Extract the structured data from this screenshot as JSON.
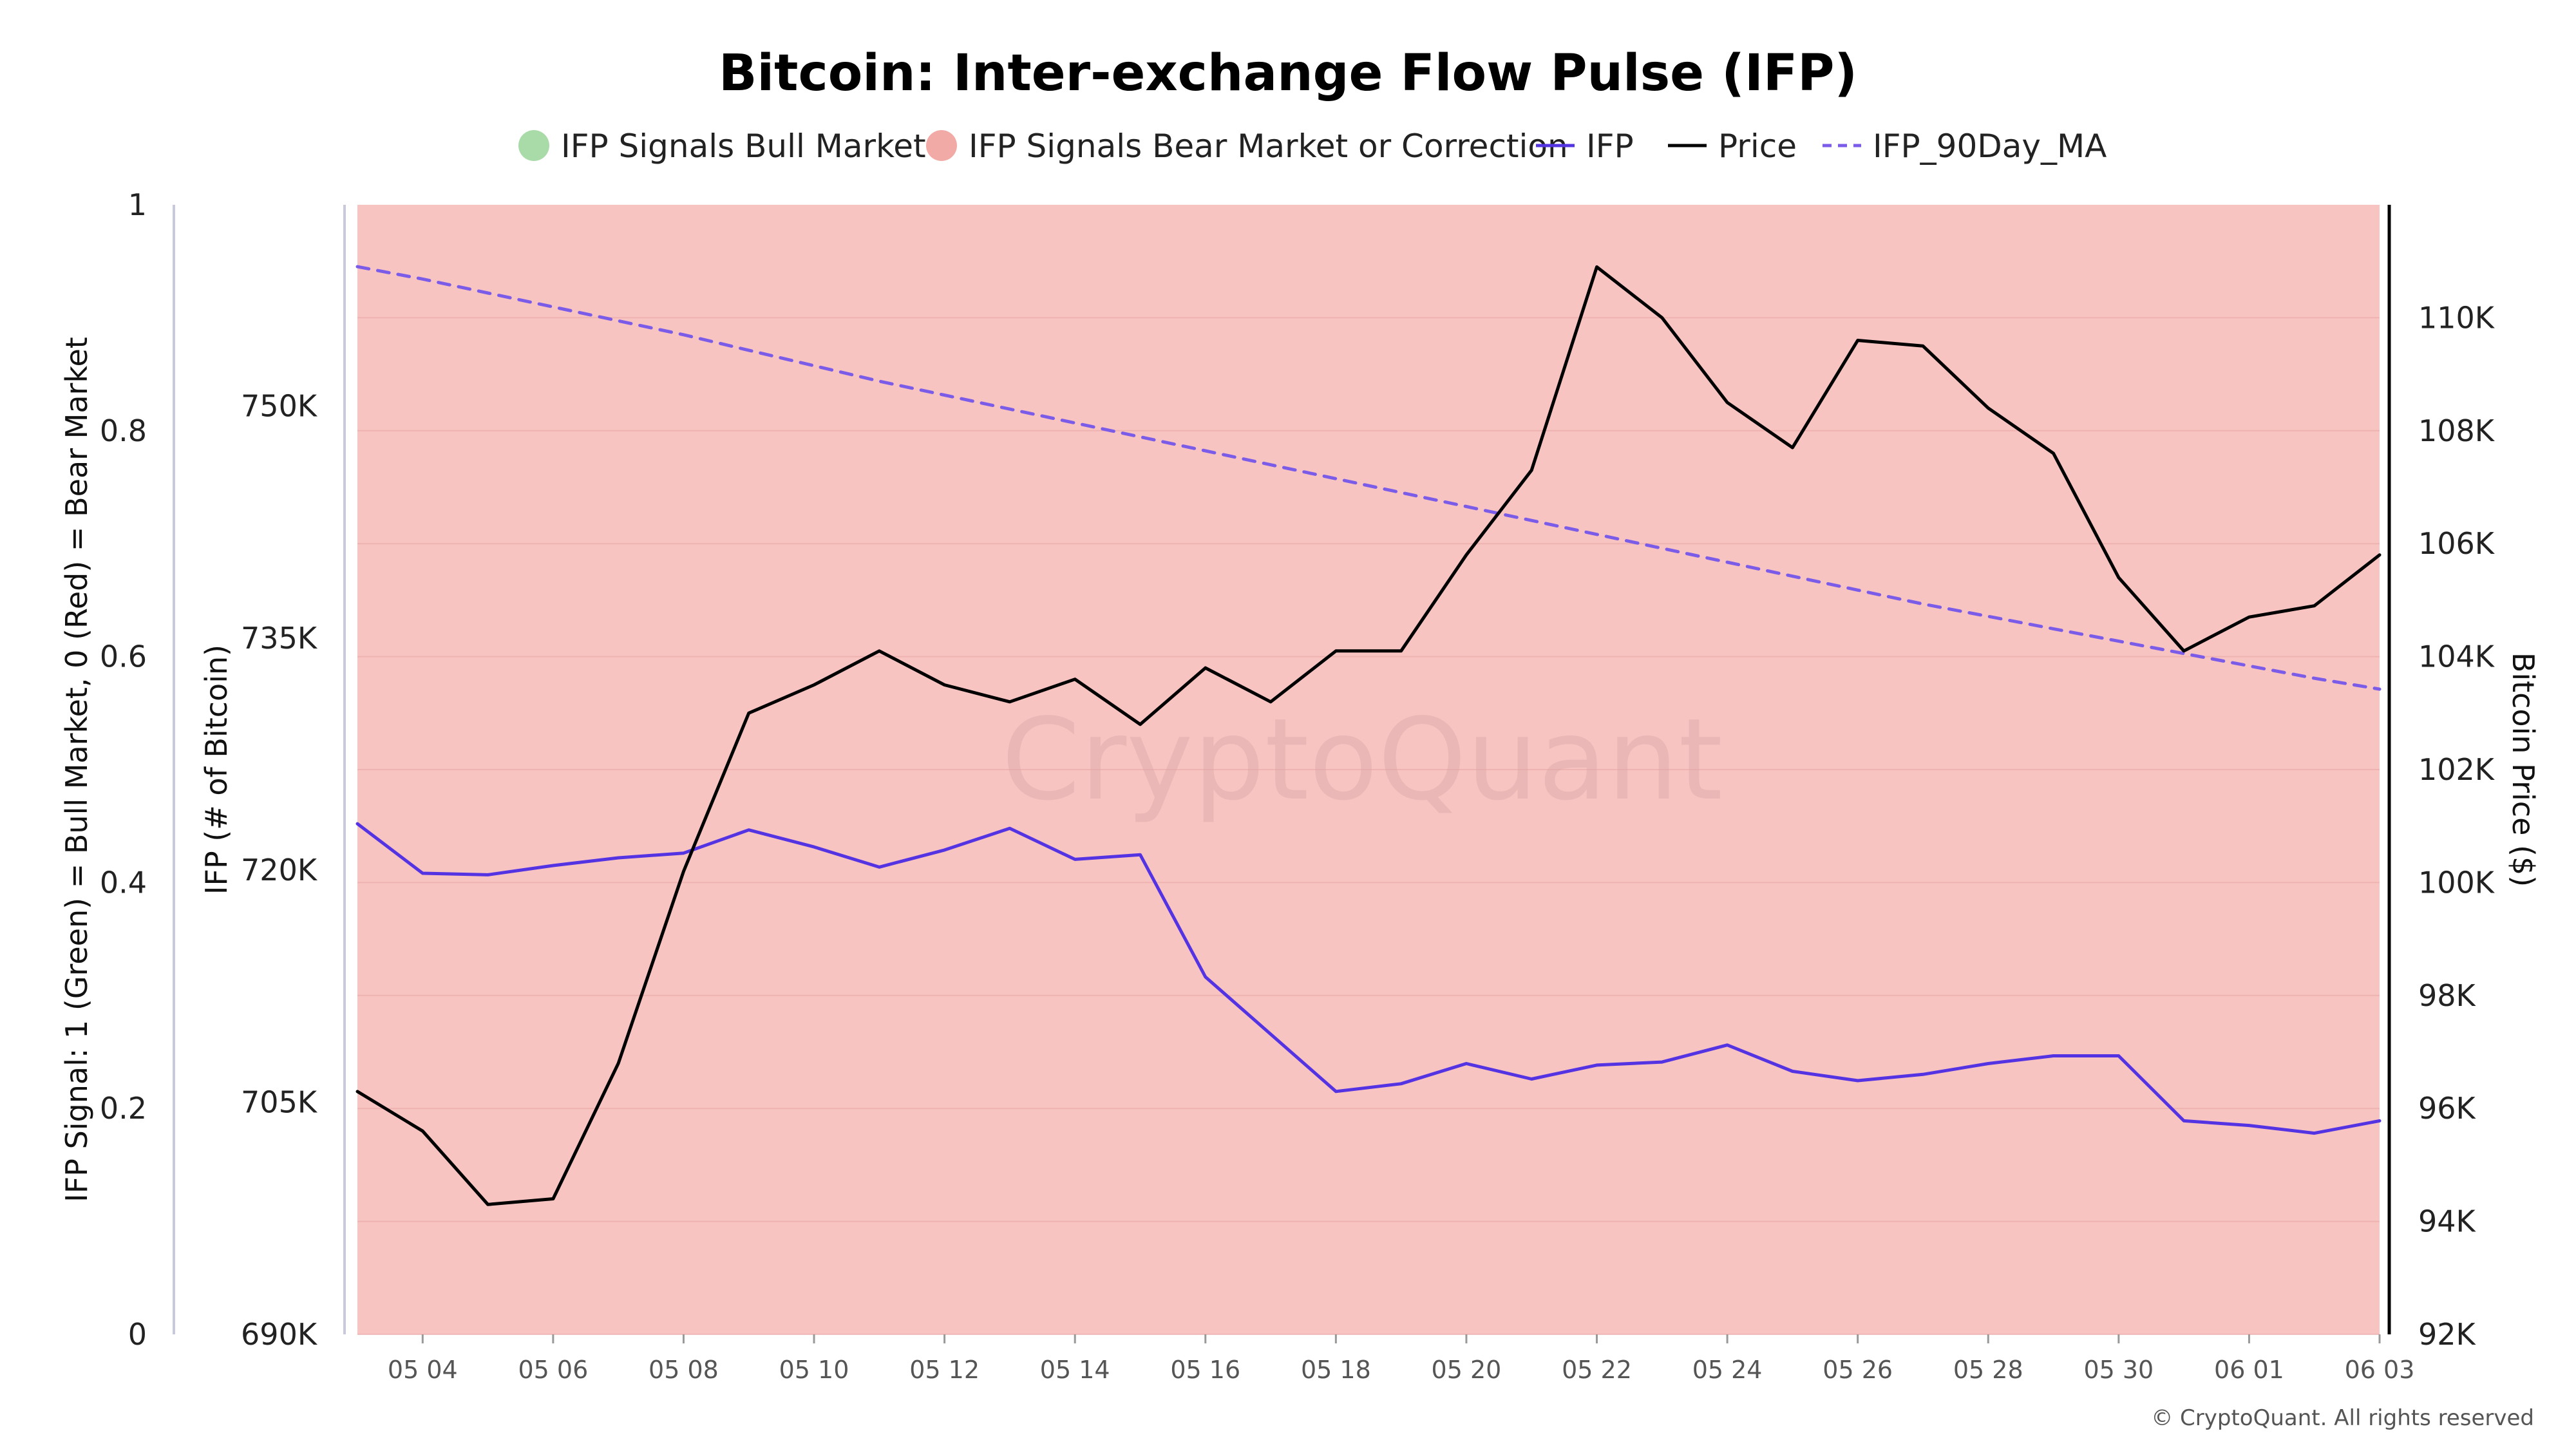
{
  "title": "Bitcoin: Inter-exchange Flow Pulse (IFP)",
  "legend": [
    {
      "label": "IFP Signals Bull Market",
      "kind": "dot",
      "color": "#a8dba8"
    },
    {
      "label": "IFP Signals Bear Market or Correction",
      "kind": "dot",
      "color": "#f2aaa6"
    },
    {
      "label": "IFP",
      "kind": "line",
      "color": "#5433e3"
    },
    {
      "label": "Price",
      "kind": "line",
      "color": "#000000"
    },
    {
      "label": "IFP_90Day_MA",
      "kind": "dash",
      "color": "#7b5ce8"
    }
  ],
  "watermark": "CryptoQuant",
  "copyright": "© CryptoQuant. All rights reserved",
  "colors": {
    "bear_region": "#f7c4c1",
    "ifp": "#5433e3",
    "price": "#000000",
    "ifp_ma": "#7b5ce8"
  },
  "chart_data": {
    "type": "line",
    "x_axis": {
      "dates": [
        "2025-05-03",
        "2025-05-04",
        "2025-05-05",
        "2025-05-06",
        "2025-05-07",
        "2025-05-08",
        "2025-05-09",
        "2025-05-10",
        "2025-05-11",
        "2025-05-12",
        "2025-05-13",
        "2025-05-14",
        "2025-05-15",
        "2025-05-16",
        "2025-05-17",
        "2025-05-18",
        "2025-05-19",
        "2025-05-20",
        "2025-05-21",
        "2025-05-22",
        "2025-05-23",
        "2025-05-24",
        "2025-05-25",
        "2025-05-26",
        "2025-05-27",
        "2025-05-28",
        "2025-05-29",
        "2025-05-30",
        "2025-05-31",
        "2025-06-01",
        "2025-06-02",
        "2025-06-03"
      ],
      "tick_labels": [
        "05 04",
        "05 06",
        "05 08",
        "05 10",
        "05 12",
        "05 14",
        "05 16",
        "05 18",
        "05 20",
        "05 22",
        "05 24",
        "05 26",
        "05 28",
        "05 30",
        "06 01",
        "06 03"
      ]
    },
    "axes": {
      "signal": {
        "title": "IFP Signal: 1 (Green) = Bull Market, 0 (Red) = Bear Market",
        "range": [
          0,
          1
        ],
        "ticks": [
          "0",
          "0.2",
          "0.4",
          "0.6",
          "0.8",
          "1"
        ]
      },
      "ifp": {
        "title": "IFP (# of Bitcoin)",
        "range": [
          690000,
          763000
        ],
        "ticks": [
          690000,
          705000,
          720000,
          735000,
          750000
        ],
        "tick_labels": [
          "690K",
          "705K",
          "720K",
          "735K",
          "750K"
        ]
      },
      "price": {
        "title": "Bitcoin Price ($)",
        "range": [
          92000,
          112000
        ],
        "ticks": [
          92000,
          94000,
          96000,
          98000,
          100000,
          102000,
          104000,
          106000,
          108000,
          110000
        ],
        "tick_labels": [
          "92K",
          "94K",
          "96K",
          "98K",
          "100K",
          "102K",
          "104K",
          "106K",
          "108K",
          "110K"
        ]
      }
    },
    "signal": [
      0,
      0,
      0,
      0,
      0,
      0,
      0,
      0,
      0,
      0,
      0,
      0,
      0,
      0,
      0,
      0,
      0,
      0,
      0,
      0,
      0,
      0,
      0,
      0,
      0,
      0,
      0,
      0,
      0,
      0,
      0,
      0
    ],
    "series": [
      {
        "name": "IFP",
        "axis": "ifp",
        "values": [
          723000,
          719800,
          719700,
          720300,
          720800,
          721100,
          722600,
          721500,
          720200,
          721300,
          722700,
          720700,
          721000,
          713100,
          709400,
          705700,
          706200,
          707500,
          706500,
          707400,
          707600,
          708700,
          707000,
          706400,
          706800,
          707500,
          708000,
          708000,
          703800,
          703500,
          703000,
          703800
        ]
      },
      {
        "name": "Price",
        "axis": "price",
        "values": [
          96300,
          95600,
          94300,
          94400,
          96800,
          100200,
          103000,
          103500,
          104100,
          103500,
          103200,
          103600,
          102800,
          103800,
          103200,
          104100,
          104100,
          105800,
          107300,
          110900,
          110000,
          108500,
          107700,
          109600,
          109500,
          108400,
          107600,
          105400,
          104100,
          104700,
          104900,
          105800
        ]
      },
      {
        "name": "IFP_90Day_MA",
        "axis": "ifp",
        "values": [
          759000,
          758200,
          757300,
          756400,
          755500,
          754600,
          753600,
          752600,
          751600,
          750700,
          749800,
          748900,
          748000,
          747100,
          746200,
          745300,
          744400,
          743500,
          742600,
          741700,
          740800,
          739900,
          739000,
          738100,
          737200,
          736400,
          735600,
          734800,
          734000,
          733200,
          732400,
          731700
        ]
      }
    ]
  }
}
